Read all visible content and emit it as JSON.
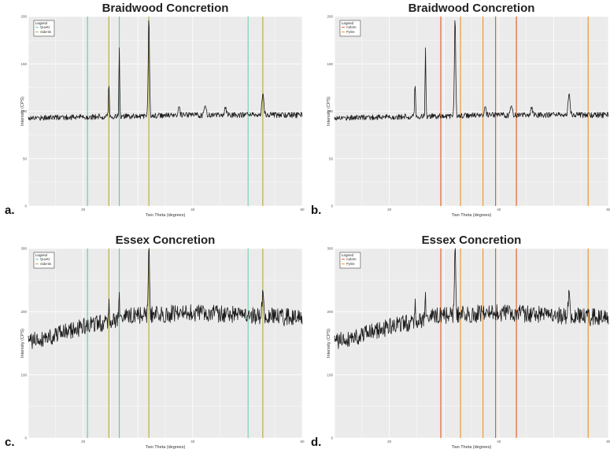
{
  "figure": {
    "colors": {
      "quartz": "#5fc8b4",
      "siderite": "#b5a83a",
      "calcite": "#e2561f",
      "pyrite": "#e8932e",
      "trace": "#1a1a1a",
      "panel_bg": "#ebebeb",
      "grid": "#ffffff"
    }
  },
  "chart_data": [
    {
      "id": "a",
      "panel_label": "a.",
      "type": "line",
      "title": "Braidwood Concretion",
      "xlabel": "Two Theta (degrees)",
      "ylabel": "Intensity (CPS)",
      "xlim": [
        10,
        60
      ],
      "ylim": [
        0,
        200
      ],
      "xticks": [
        "20",
        "40",
        "60"
      ],
      "yticks": [
        "0",
        "50",
        "100",
        "150",
        "200"
      ],
      "legend": {
        "title": "Legend",
        "position": "top-left",
        "items": [
          {
            "label": "Quartz",
            "color_key": "quartz"
          },
          {
            "label": "Siderite",
            "color_key": "siderite"
          }
        ]
      },
      "reference_lines": [
        {
          "mineral": "Quartz",
          "color_key": "quartz",
          "x": [
            20.8,
            26.6,
            50.1
          ]
        },
        {
          "mineral": "Siderite",
          "color_key": "siderite",
          "x": [
            24.7,
            32.0,
            52.8
          ]
        }
      ],
      "series": {
        "baseline": [
          [
            10,
            93
          ],
          [
            40,
            96
          ],
          [
            60,
            96
          ]
        ],
        "noise": 3,
        "peaks": [
          [
            24.7,
            130,
            0.12
          ],
          [
            26.6,
            170,
            0.1
          ],
          [
            32.0,
            200,
            0.16
          ],
          [
            37.5,
            104,
            0.2
          ],
          [
            42.3,
            108,
            0.2
          ],
          [
            46,
            104,
            0.2
          ],
          [
            52.8,
            117,
            0.25
          ]
        ]
      }
    },
    {
      "id": "b",
      "panel_label": "b.",
      "type": "line",
      "title": "Braidwood Concretion",
      "xlabel": "Two Theta (degrees)",
      "ylabel": "Intensity (CPS)",
      "xlim": [
        10,
        60
      ],
      "ylim": [
        0,
        200
      ],
      "xticks": [
        "20",
        "40",
        "60"
      ],
      "yticks": [
        "0",
        "50",
        "100",
        "150",
        "200"
      ],
      "legend": {
        "title": "Legend",
        "position": "top-left",
        "items": [
          {
            "label": "Calcite",
            "color_key": "calcite"
          },
          {
            "label": "Pyrite",
            "color_key": "pyrite"
          }
        ]
      },
      "reference_lines": [
        {
          "mineral": "Calcite",
          "color_key": "calcite",
          "x": [
            29.4,
            39.4,
            43.2
          ]
        },
        {
          "mineral": "Pyrite",
          "color_key": "pyrite",
          "x": [
            33.0,
            37.1,
            56.3
          ]
        }
      ],
      "series": {
        "baseline": [
          [
            10,
            93
          ],
          [
            40,
            96
          ],
          [
            60,
            96
          ]
        ],
        "noise": 3,
        "peaks": [
          [
            24.7,
            130,
            0.12
          ],
          [
            26.6,
            170,
            0.1
          ],
          [
            32.0,
            200,
            0.16
          ],
          [
            37.5,
            104,
            0.2
          ],
          [
            42.3,
            108,
            0.2
          ],
          [
            46,
            104,
            0.2
          ],
          [
            52.8,
            117,
            0.25
          ]
        ]
      }
    },
    {
      "id": "c",
      "panel_label": "c.",
      "type": "line",
      "title": "Essex Concretion",
      "xlabel": "Two Theta (degrees)",
      "ylabel": "Intensity (CPS)",
      "xlim": [
        10,
        60
      ],
      "ylim": [
        0,
        300
      ],
      "xticks": [
        "20",
        "40",
        "60"
      ],
      "yticks": [
        "0",
        "100",
        "200",
        "300"
      ],
      "legend": {
        "title": "Legend",
        "position": "top-left",
        "items": [
          {
            "label": "Quartz",
            "color_key": "quartz"
          },
          {
            "label": "Siderite",
            "color_key": "siderite"
          }
        ]
      },
      "reference_lines": [
        {
          "mineral": "Quartz",
          "color_key": "quartz",
          "x": [
            20.8,
            26.6,
            50.1
          ]
        },
        {
          "mineral": "Siderite",
          "color_key": "siderite",
          "x": [
            24.7,
            32.0,
            52.8
          ]
        }
      ],
      "series": {
        "baseline": [
          [
            10,
            152
          ],
          [
            22,
            180
          ],
          [
            30,
            195
          ],
          [
            40,
            198
          ],
          [
            60,
            190
          ]
        ],
        "noise": 14,
        "peaks": [
          [
            24.7,
            218,
            0.12
          ],
          [
            26.6,
            225,
            0.1
          ],
          [
            32.0,
            300,
            0.15
          ],
          [
            52.8,
            225,
            0.25
          ]
        ]
      }
    },
    {
      "id": "d",
      "panel_label": "d.",
      "type": "line",
      "title": "Essex Concretion",
      "xlabel": "Two Theta (degrees)",
      "ylabel": "Intensity (CPS)",
      "xlim": [
        10,
        60
      ],
      "ylim": [
        0,
        300
      ],
      "xticks": [
        "20",
        "40",
        "60"
      ],
      "yticks": [
        "0",
        "100",
        "200",
        "300"
      ],
      "legend": {
        "title": "Legend",
        "position": "top-left",
        "items": [
          {
            "label": "Calcite",
            "color_key": "calcite"
          },
          {
            "label": "Pyrite",
            "color_key": "pyrite"
          }
        ]
      },
      "reference_lines": [
        {
          "mineral": "Calcite",
          "color_key": "calcite",
          "x": [
            29.4,
            39.4,
            43.2
          ]
        },
        {
          "mineral": "Pyrite",
          "color_key": "pyrite",
          "x": [
            33.0,
            37.1,
            56.3
          ]
        }
      ],
      "series": {
        "baseline": [
          [
            10,
            152
          ],
          [
            22,
            180
          ],
          [
            30,
            195
          ],
          [
            40,
            198
          ],
          [
            60,
            190
          ]
        ],
        "noise": 14,
        "peaks": [
          [
            24.7,
            218,
            0.12
          ],
          [
            26.6,
            225,
            0.1
          ],
          [
            32.0,
            300,
            0.15
          ],
          [
            52.8,
            225,
            0.25
          ]
        ]
      }
    }
  ]
}
